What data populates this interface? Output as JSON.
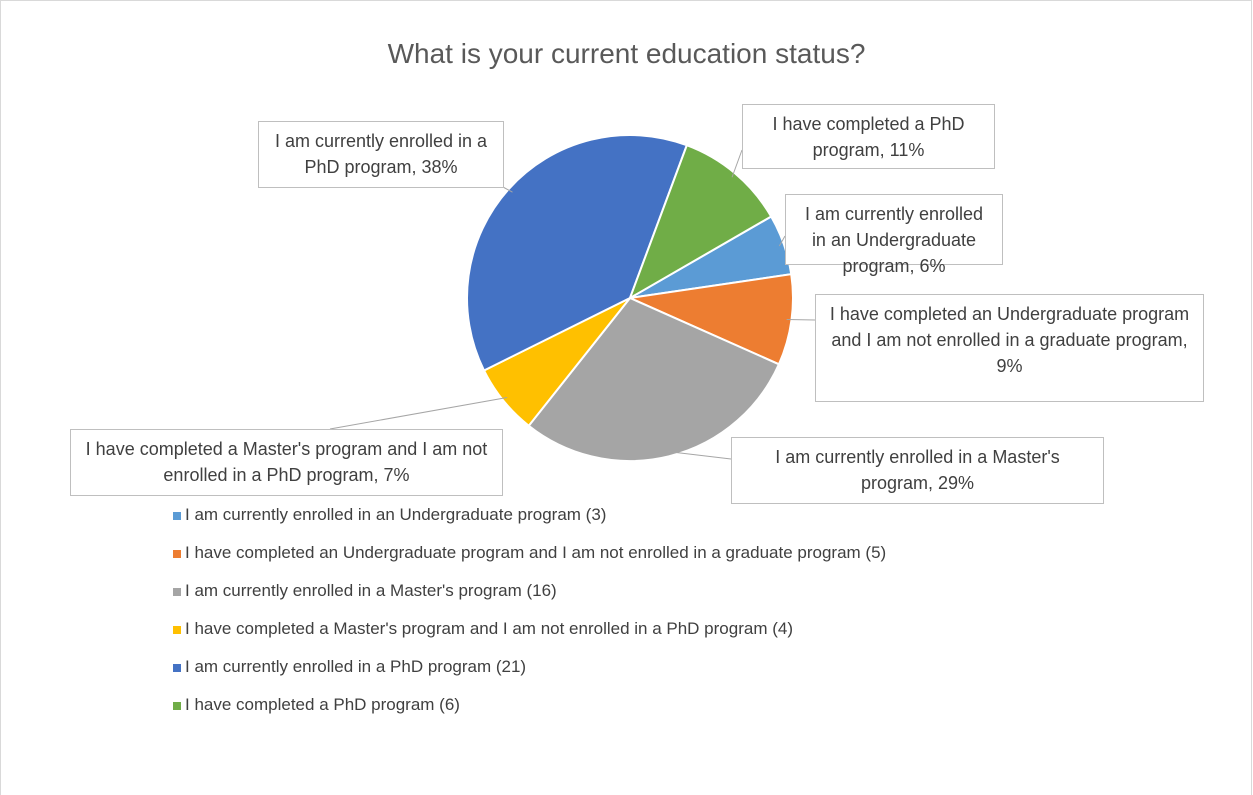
{
  "chart_data": {
    "type": "pie",
    "title": "What is your current education status?",
    "categories": [
      "I am currently enrolled in an Undergraduate program (3)",
      "I have completed an Undergraduate program and I am not enrolled in a graduate program (5)",
      "I am currently enrolled in a Master's program (16)",
      "I have completed a Master's program and I am not enrolled in a PhD program (4)",
      "I am currently enrolled in a PhD program (21)",
      "I have completed a PhD program (6)"
    ],
    "values": [
      6,
      9,
      29,
      7,
      38,
      11
    ],
    "value_labels": [
      "I am currently enrolled in an Undergraduate program, 6%",
      "I have completed an Undergraduate program and I am not enrolled in a graduate program, 9%",
      "I am currently enrolled in a Master's program, 29%",
      "I have completed a Master's program and I am not enrolled in a PhD program, 7%",
      "I am currently enrolled in a PhD program, 38%",
      "I have completed a PhD program, 11%"
    ],
    "colors": [
      "#5b9bd5",
      "#ed7d31",
      "#a5a5a5",
      "#ffc000",
      "#4472c4",
      "#70ad47"
    ],
    "legend": "bottom"
  }
}
